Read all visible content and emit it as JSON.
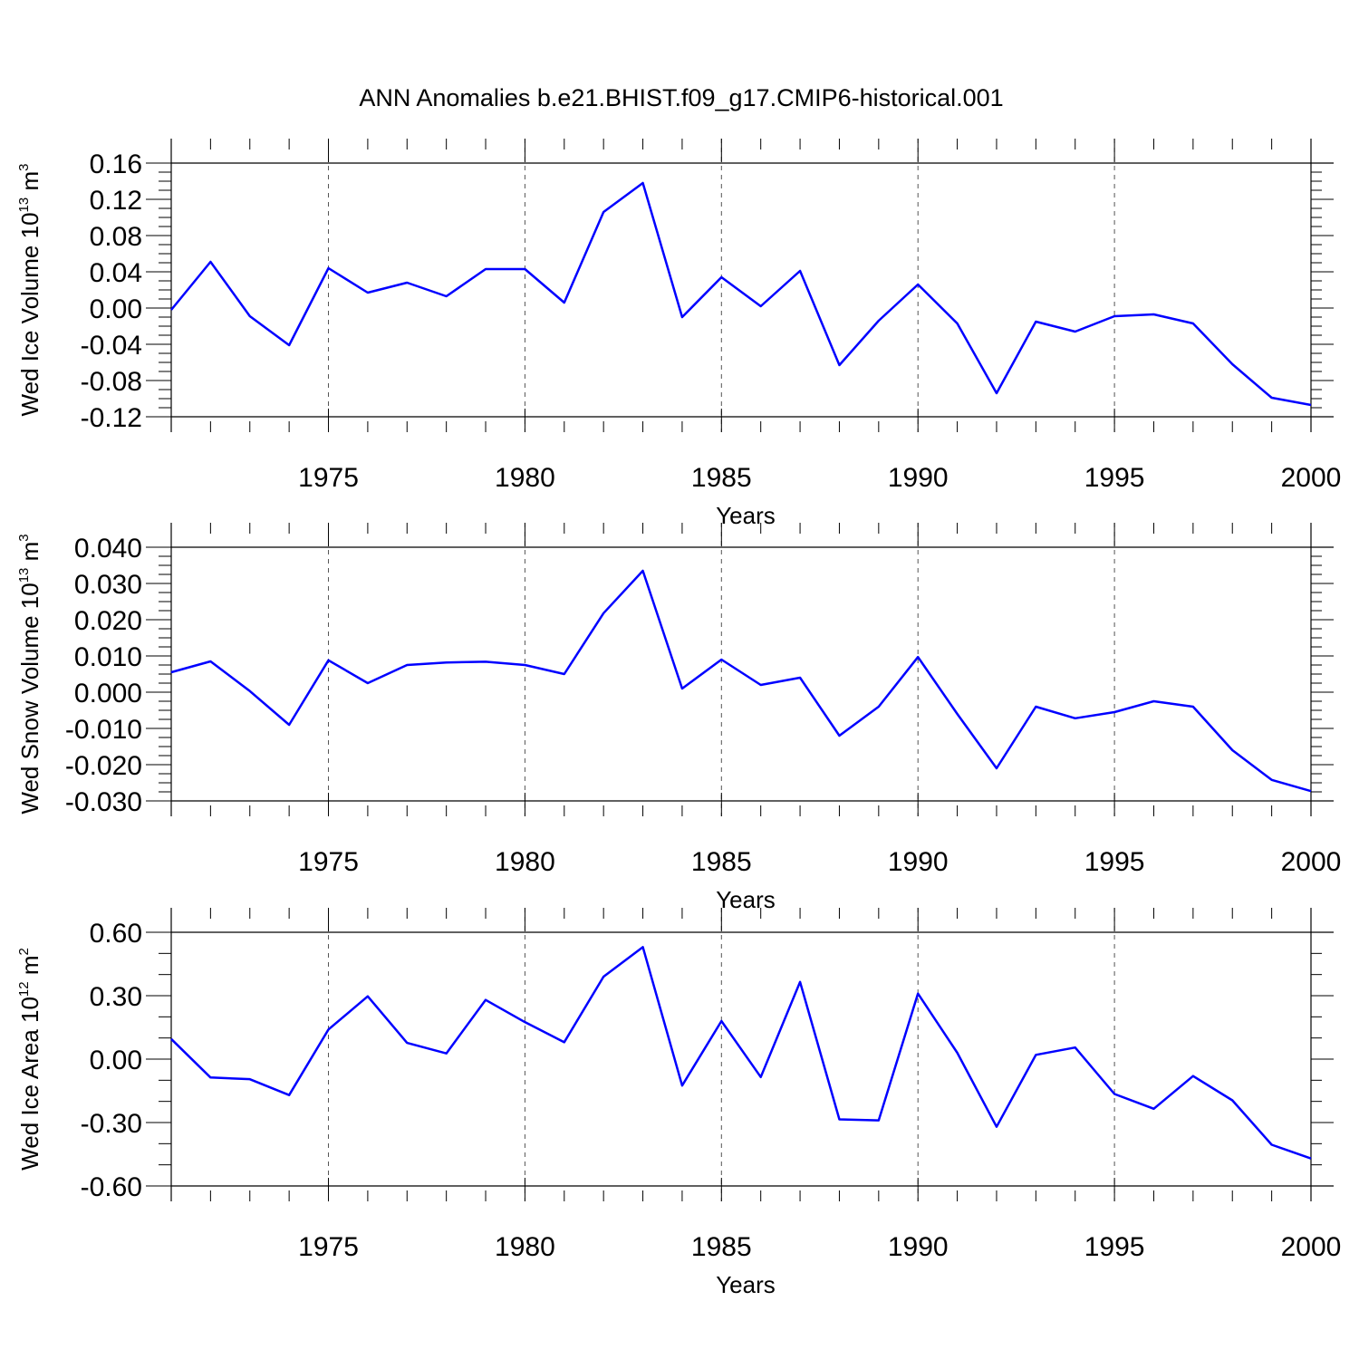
{
  "title": "ANN Anomalies b.e21.BHIST.f09_g17.CMIP6-historical.001",
  "line_color": "#0000ff",
  "chart_data": [
    {
      "type": "line",
      "ylabel": {
        "main": "Wed Ice Volume 10",
        "exponent": "13",
        "unit": "m",
        "unit_exponent": "3"
      },
      "xlabel": "Years",
      "xlim": [
        1971,
        2000
      ],
      "ylim": [
        -0.12,
        0.16
      ],
      "yticks": [
        "-0.12",
        "-0.08",
        "-0.04",
        "0.00",
        "0.04",
        "0.08",
        "0.12",
        "0.16"
      ],
      "xticks": [
        "1975",
        "1980",
        "1985",
        "1990",
        "1995",
        "2000"
      ],
      "grid": "vertical dashed at major x ticks",
      "series": [
        {
          "x": [
            1971,
            1972,
            1973,
            1974,
            1975,
            1976,
            1977,
            1978,
            1979,
            1980,
            1981,
            1982,
            1983,
            1984,
            1985,
            1986,
            1987,
            1988,
            1989,
            1990,
            1991,
            1992,
            1993,
            1994,
            1995,
            1996,
            1997,
            1998,
            1999,
            2000
          ],
          "values": [
            -0.002,
            0.051,
            -0.009,
            -0.041,
            0.044,
            0.017,
            0.028,
            0.013,
            0.043,
            0.043,
            0.006,
            0.106,
            0.138,
            -0.01,
            0.034,
            0.002,
            0.041,
            -0.063,
            -0.014,
            0.026,
            -0.017,
            -0.094,
            -0.015,
            -0.026,
            -0.009,
            -0.007,
            -0.017,
            -0.062,
            -0.099,
            -0.107
          ]
        }
      ]
    },
    {
      "type": "line",
      "ylabel": {
        "main": "Wed Snow Volume 10",
        "exponent": "13",
        "unit": "m",
        "unit_exponent": "3"
      },
      "xlabel": "Years",
      "xlim": [
        1971,
        2000
      ],
      "ylim": [
        -0.03,
        0.04
      ],
      "yticks": [
        "-0.030",
        "-0.020",
        "-0.010",
        "0.000",
        "0.010",
        "0.020",
        "0.030",
        "0.040"
      ],
      "xticks": [
        "1975",
        "1980",
        "1985",
        "1990",
        "1995",
        "2000"
      ],
      "grid": "vertical dashed at major x ticks",
      "series": [
        {
          "x": [
            1971,
            1972,
            1973,
            1974,
            1975,
            1976,
            1977,
            1978,
            1979,
            1980,
            1981,
            1982,
            1983,
            1984,
            1985,
            1986,
            1987,
            1988,
            1989,
            1990,
            1991,
            1992,
            1993,
            1994,
            1995,
            1996,
            1997,
            1998,
            1999,
            2000
          ],
          "values": [
            0.0055,
            0.0085,
            0.0003,
            -0.009,
            0.0088,
            0.0025,
            0.0075,
            0.0082,
            0.0084,
            0.0075,
            0.005,
            0.0218,
            0.0335,
            0.001,
            0.009,
            0.002,
            0.004,
            -0.012,
            -0.004,
            0.0097,
            -0.006,
            -0.021,
            -0.004,
            -0.0072,
            -0.0055,
            -0.0025,
            -0.004,
            -0.016,
            -0.0242,
            -0.0273
          ]
        }
      ]
    },
    {
      "type": "line",
      "ylabel": {
        "main": "Wed Ice Area 10",
        "exponent": "12",
        "unit": "m",
        "unit_exponent": "2"
      },
      "xlabel": "Years",
      "xlim": [
        1971,
        2000
      ],
      "ylim": [
        -0.6,
        0.6
      ],
      "yticks": [
        "-0.60",
        "-0.30",
        "0.00",
        "0.30",
        "0.60"
      ],
      "xticks": [
        "1975",
        "1980",
        "1985",
        "1990",
        "1995",
        "2000"
      ],
      "grid": "vertical dashed at major x ticks",
      "series": [
        {
          "x": [
            1971,
            1972,
            1973,
            1974,
            1975,
            1976,
            1977,
            1978,
            1979,
            1980,
            1981,
            1982,
            1983,
            1984,
            1985,
            1986,
            1987,
            1988,
            1989,
            1990,
            1991,
            1992,
            1993,
            1994,
            1995,
            1996,
            1997,
            1998,
            1999,
            2000
          ],
          "values": [
            0.095,
            -0.087,
            -0.095,
            -0.17,
            0.14,
            0.297,
            0.077,
            0.027,
            0.28,
            0.175,
            0.08,
            0.39,
            0.53,
            -0.125,
            0.18,
            -0.085,
            0.365,
            -0.285,
            -0.29,
            0.31,
            0.03,
            -0.32,
            0.02,
            0.055,
            -0.165,
            -0.235,
            -0.08,
            -0.195,
            -0.405,
            -0.47
          ]
        }
      ]
    }
  ]
}
